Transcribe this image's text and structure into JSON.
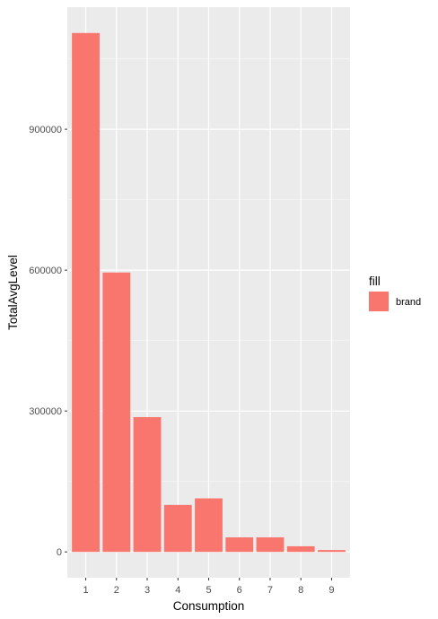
{
  "chart_data": {
    "type": "bar",
    "categories": [
      "1",
      "2",
      "3",
      "4",
      "5",
      "6",
      "7",
      "8",
      "9"
    ],
    "series": [
      {
        "name": "brand",
        "values": [
          1105000,
          595000,
          287000,
          100000,
          114000,
          31000,
          31000,
          12000,
          4000
        ]
      }
    ],
    "xlabel": "Consumption",
    "ylabel": "TotalAvgLevel",
    "yticks": [
      0,
      300000,
      600000,
      900000
    ],
    "ytick_labels": [
      "0",
      "300000",
      "600000",
      "900000"
    ],
    "ylim": [
      -55000,
      1160000
    ],
    "grid": true,
    "legend": {
      "title": "fill",
      "position": "right",
      "items": [
        "brand"
      ]
    },
    "colors": {
      "bar": "#F8766D",
      "panel": "#EBEBEB",
      "grid_major": "#FFFFFF",
      "grid_minor": "#F5F5F5",
      "tick_text": "#4D4D4D"
    }
  }
}
